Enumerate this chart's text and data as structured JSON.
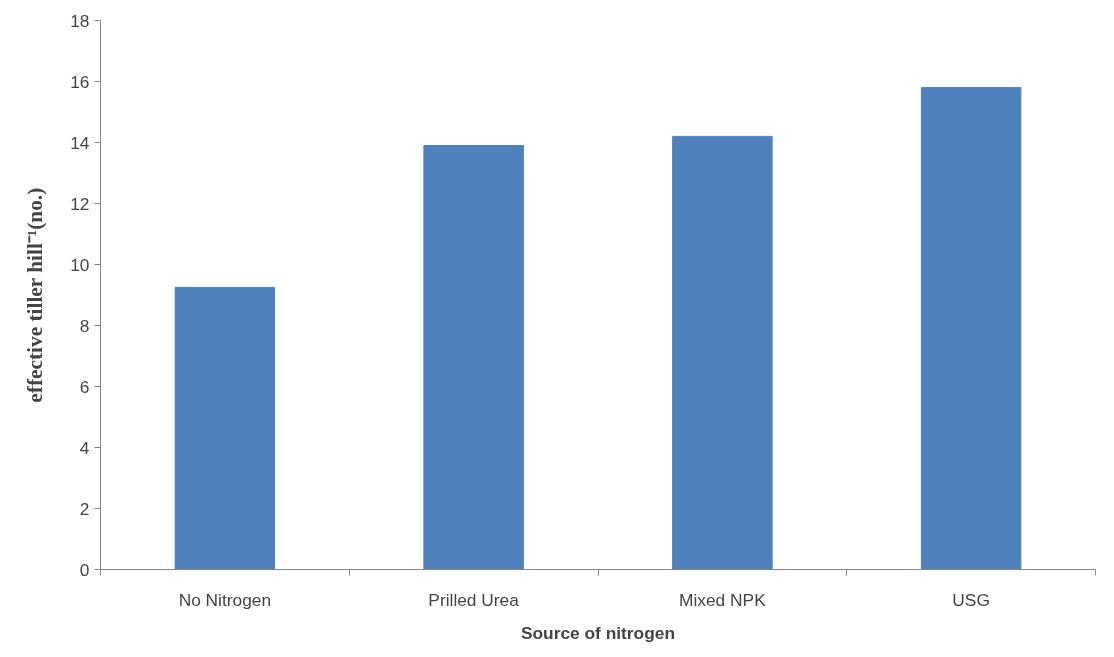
{
  "chart_data": {
    "type": "bar",
    "xlabel": "Source of nitrogen",
    "ylabel": "effective tiller hill⁻¹(no.)",
    "categories": [
      "No Nitrogen",
      "Prilled Urea",
      "Mixed NPK",
      "USG"
    ],
    "values": [
      9.25,
      13.9,
      14.2,
      15.8
    ],
    "color": "#4f81bd",
    "ylim": [
      0,
      18
    ],
    "yticks": [
      0,
      2,
      4,
      6,
      8,
      10,
      12,
      14,
      16,
      18
    ],
    "grid": false
  }
}
